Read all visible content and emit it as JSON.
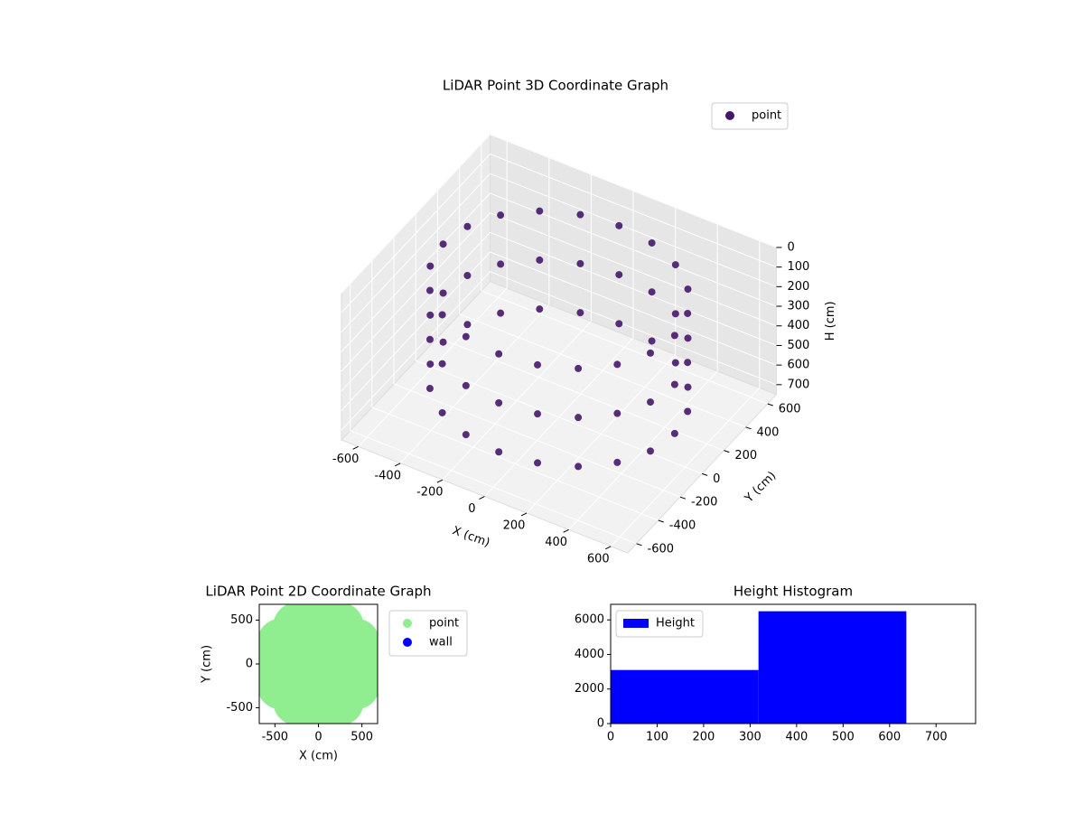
{
  "chart_data": [
    {
      "type": "scatter3d",
      "title": "LiDAR Point 3D Coordinate Graph",
      "xlabel": "X (cm)",
      "ylabel": "Y (cm)",
      "zlabel": "H (cm)",
      "xlim": [
        -680,
        680
      ],
      "ylim": [
        -680,
        680
      ],
      "zlim": [
        0,
        750
      ],
      "z_inverted": true,
      "xticks": [
        -600,
        -400,
        -200,
        0,
        200,
        400,
        600
      ],
      "yticks": [
        -600,
        -400,
        -200,
        0,
        200,
        400,
        600
      ],
      "zticks": [
        0,
        100,
        200,
        300,
        400,
        500,
        600,
        700
      ],
      "grid": true,
      "legend": "upper right",
      "series": [
        {
          "name": "point",
          "color": "#46166a",
          "x": [
            550,
            523,
            445,
            323,
            170,
            0,
            -170,
            -323,
            -445,
            -523,
            -550,
            -523,
            -445,
            -323,
            -170,
            0,
            170,
            323,
            445,
            523,
            550,
            523,
            445,
            323,
            170,
            0,
            -170,
            -323,
            -445,
            -523,
            -550,
            -523,
            -445,
            -323,
            -170,
            0,
            170,
            323,
            445,
            523,
            550,
            523,
            445,
            323,
            170,
            0,
            -170,
            -323,
            -445,
            -523,
            -550,
            -523,
            -445,
            -323,
            -170,
            0,
            170,
            323,
            445,
            523
          ],
          "y": [
            0,
            170,
            323,
            445,
            523,
            550,
            523,
            445,
            323,
            170,
            0,
            -170,
            -323,
            -445,
            -523,
            -550,
            -523,
            -445,
            -323,
            -170,
            0,
            170,
            323,
            445,
            523,
            550,
            523,
            445,
            323,
            170,
            0,
            -170,
            -323,
            -445,
            -523,
            -550,
            -523,
            -445,
            -323,
            -170,
            0,
            170,
            323,
            445,
            523,
            550,
            523,
            445,
            323,
            170,
            0,
            -170,
            -323,
            -445,
            -523,
            -550,
            -523,
            -445,
            -323,
            -170
          ],
          "z": [
            100,
            100,
            100,
            100,
            100,
            100,
            100,
            100,
            100,
            100,
            100,
            100,
            100,
            100,
            100,
            100,
            100,
            100,
            100,
            100,
            350,
            350,
            350,
            350,
            350,
            350,
            350,
            350,
            350,
            350,
            350,
            350,
            350,
            350,
            350,
            350,
            350,
            350,
            350,
            350,
            600,
            600,
            600,
            600,
            600,
            600,
            600,
            600,
            600,
            600,
            600,
            600,
            600,
            600,
            600,
            600,
            600,
            600,
            600,
            600
          ]
        }
      ]
    },
    {
      "type": "scatter",
      "title": "LiDAR Point 2D Coordinate Graph",
      "xlabel": "X (cm)",
      "ylabel": "Y (cm)",
      "xlim": [
        -680,
        680
      ],
      "ylim": [
        -680,
        680
      ],
      "xticks": [
        -500,
        0,
        500
      ],
      "yticks": [
        -500,
        0,
        500
      ],
      "legend": "outside right",
      "series": [
        {
          "name": "point",
          "color": "#90ee90",
          "x": [
            0,
            250,
            177,
            0,
            -177,
            -250,
            -177,
            0,
            177,
            500,
            433,
            250,
            0,
            -250,
            -433,
            -500,
            -433,
            -250,
            0,
            250,
            433
          ],
          "y": [
            0,
            0,
            177,
            250,
            177,
            0,
            -177,
            -250,
            -177,
            0,
            250,
            433,
            500,
            433,
            250,
            0,
            -250,
            -433,
            -500,
            -433,
            -250
          ]
        },
        {
          "name": "wall",
          "color": "#0000ff",
          "x": [],
          "y": []
        }
      ]
    },
    {
      "type": "histogram",
      "title": "Height Histogram",
      "bins": [
        0,
        318,
        636
      ],
      "counts": [
        3100,
        6500
      ],
      "color": "#0000ff",
      "label": "Height",
      "xlim": [
        0,
        785
      ],
      "ylim": [
        0,
        6900
      ],
      "xticks": [
        0,
        100,
        200,
        300,
        400,
        500,
        600,
        700
      ],
      "yticks": [
        0,
        2000,
        4000,
        6000
      ],
      "legend": "upper left"
    }
  ]
}
